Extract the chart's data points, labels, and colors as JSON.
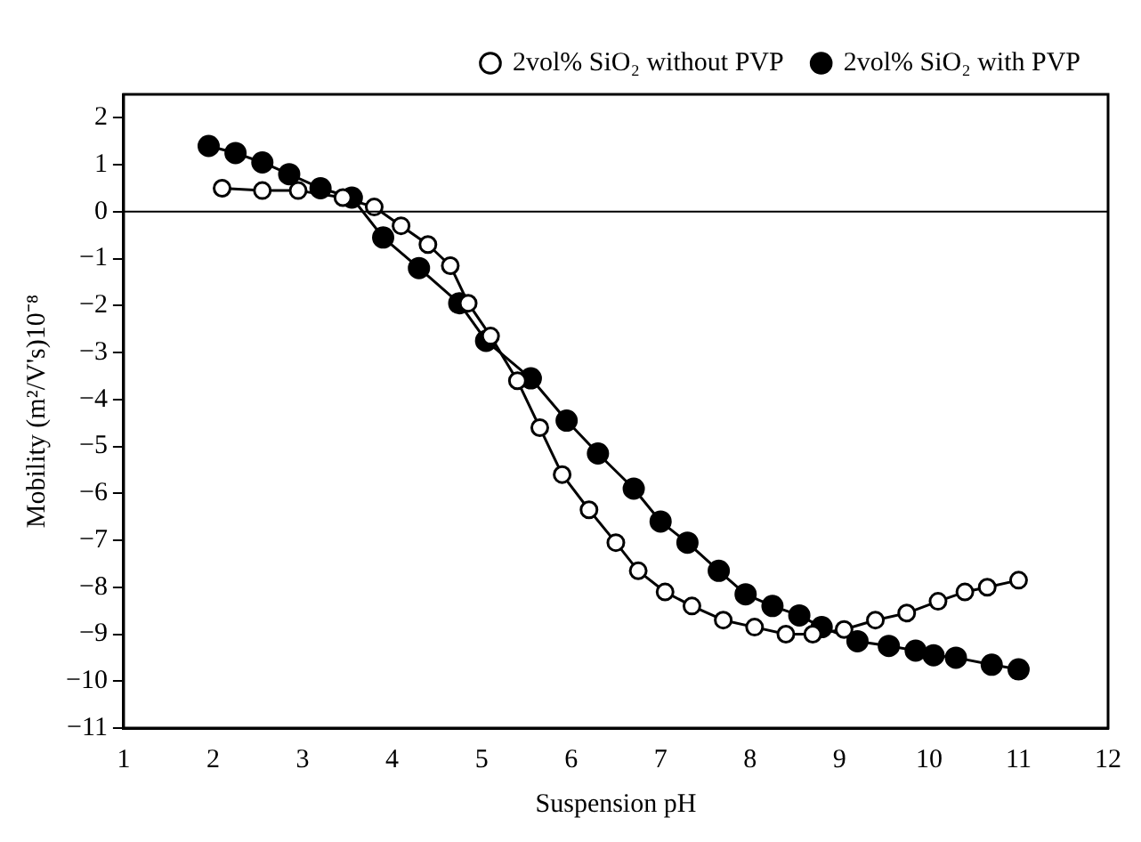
{
  "chart_data": {
    "type": "line",
    "xlabel": "Suspension pH",
    "ylabel": "Mobility (m²/V's)10⁻⁸",
    "xlim": [
      1,
      12
    ],
    "ylim": [
      -11,
      2.5
    ],
    "xticks": [
      1,
      2,
      3,
      4,
      5,
      6,
      7,
      8,
      9,
      10,
      11,
      12
    ],
    "yticks": [
      -11,
      -10,
      -9,
      -8,
      -7,
      -6,
      -5,
      -4,
      -3,
      -2,
      -1,
      0,
      1,
      2
    ],
    "legend": "top right",
    "grid": false,
    "marker": "circle",
    "ref_lines": [
      {
        "axis": "y",
        "value": 0,
        "color": "#000000"
      }
    ],
    "series": [
      {
        "name": "2vol% SiO₂ without PVP",
        "color": "#000000",
        "x": [
          2.1,
          2.55,
          2.95,
          3.45,
          3.8,
          4.1,
          4.4,
          4.65,
          4.85,
          5.1,
          5.4,
          5.65,
          5.9,
          6.2,
          6.5,
          6.75,
          7.05,
          7.35,
          7.7,
          8.05,
          8.4,
          8.7,
          9.05,
          9.4,
          9.75,
          10.1,
          10.4,
          10.65,
          11.0
        ],
        "values": [
          0.5,
          0.45,
          0.45,
          0.3,
          0.1,
          -0.3,
          -0.7,
          -1.15,
          -1.95,
          -2.65,
          -3.6,
          -4.6,
          -5.6,
          -6.35,
          -7.05,
          -7.65,
          -8.1,
          -8.4,
          -8.7,
          -8.85,
          -9.0,
          -9.0,
          -8.9,
          -8.7,
          -8.55,
          -8.3,
          -8.1,
          -8.0,
          -7.85
        ]
      },
      {
        "name": "2vol% SiO₂ with PVP",
        "color": "#000000",
        "x": [
          1.95,
          2.25,
          2.55,
          2.85,
          3.2,
          3.55,
          3.9,
          4.3,
          4.75,
          5.05,
          5.55,
          5.95,
          6.3,
          6.7,
          7.0,
          7.3,
          7.65,
          7.95,
          8.25,
          8.55,
          8.8,
          9.2,
          9.55,
          9.85,
          10.05,
          10.3,
          10.7,
          11.0
        ],
        "values": [
          1.4,
          1.25,
          1.05,
          0.8,
          0.5,
          0.3,
          -0.55,
          -1.2,
          -1.95,
          -2.75,
          -3.55,
          -4.45,
          -5.15,
          -5.9,
          -6.6,
          -7.05,
          -7.65,
          -8.15,
          -8.4,
          -8.6,
          -8.85,
          -9.15,
          -9.25,
          -9.35,
          -9.45,
          -9.5,
          -9.65,
          -9.75
        ]
      }
    ]
  }
}
